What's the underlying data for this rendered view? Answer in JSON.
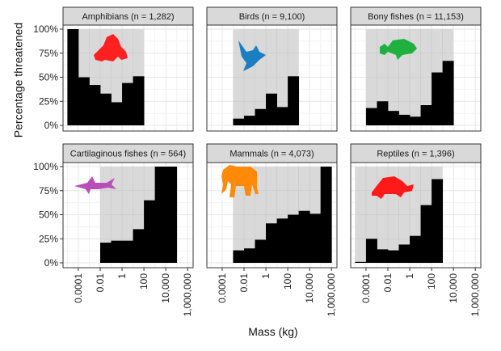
{
  "chart_data": {
    "type": "bar",
    "subtype": "faceted-histogram",
    "xlabel": "Mass (kg)",
    "ylabel": "Percentage threatened",
    "x_scale": "log10",
    "xlim_log10": [
      -5.4,
      6.5
    ],
    "ylim": [
      0,
      100
    ],
    "y_ticks": [
      0,
      25,
      50,
      75,
      100
    ],
    "y_tick_labels": [
      "0%",
      "25%",
      "50%",
      "75%",
      "100%"
    ],
    "x_ticks_log10": [
      -4,
      -2,
      0,
      2,
      4,
      6
    ],
    "x_tick_labels": [
      "0.0001",
      "0.01",
      "1",
      "100",
      "10,000",
      "1,000,000"
    ],
    "grid": true,
    "bar_color": "#000000",
    "range_shade_color": "#d9d9d9",
    "strip_color": "#d9d9d9",
    "panels": [
      {
        "title": "Amphibians (n = 1,282)",
        "icon": "frog-icon",
        "icon_color": "#ff2020",
        "bin_start_log10": -5,
        "values": [
          100,
          50,
          42,
          33,
          24,
          44,
          51
        ]
      },
      {
        "title": "Birds (n = 9,100)",
        "icon": "bird-icon",
        "icon_color": "#1a7fc2",
        "bin_start_log10": -3,
        "values": [
          7,
          10,
          17,
          33,
          19,
          51
        ]
      },
      {
        "title": "Bony fishes (n = 11,153)",
        "icon": "fish-icon",
        "icon_color": "#1fb040",
        "bin_start_log10": -4,
        "values": [
          18,
          25,
          15,
          11,
          9,
          21,
          55,
          67
        ]
      },
      {
        "title": "Cartilaginous fishes (n = 564)",
        "icon": "shark-icon",
        "icon_color": "#b84fb8",
        "bin_start_log10": -2,
        "values": [
          21,
          23,
          23,
          35,
          65,
          100,
          100
        ]
      },
      {
        "title": "Mammals (n = 4,073)",
        "icon": "elephant-icon",
        "icon_color": "#ff8a0a",
        "bin_start_log10": -3,
        "values": [
          13,
          15,
          24,
          41,
          46,
          50,
          54,
          51,
          100
        ]
      },
      {
        "title": "Reptiles (n = 1,396)",
        "icon": "turtle-icon",
        "icon_color": "#ff1a1a",
        "bin_start_log10": -5,
        "values": [
          1,
          25,
          14,
          13,
          19,
          28,
          60,
          87
        ]
      }
    ]
  }
}
